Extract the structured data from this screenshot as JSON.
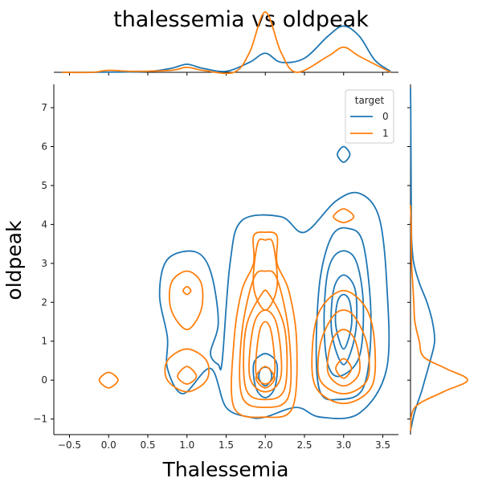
{
  "chart_data": {
    "type": "kde-jointplot",
    "title": "thalessemia vs oldpeak",
    "xlabel": "Thalessemia",
    "ylabel": "oldpeak",
    "xlim": [
      -0.7,
      3.7
    ],
    "ylim": [
      -1.4,
      7.6
    ],
    "xticks": [
      -0.5,
      0.0,
      0.5,
      1.0,
      1.5,
      2.0,
      2.5,
      3.0,
      3.5
    ],
    "xtick_labels": [
      "−0.5",
      "0.0",
      "0.5",
      "1.0",
      "1.5",
      "2.0",
      "2.5",
      "3.0",
      "3.5"
    ],
    "yticks": [
      -1,
      0,
      1,
      2,
      3,
      4,
      5,
      6,
      7
    ],
    "ytick_labels": [
      "−1",
      "0",
      "1",
      "2",
      "3",
      "4",
      "5",
      "6",
      "7"
    ],
    "legend": {
      "title": "target",
      "position": "top-right"
    },
    "series": [
      {
        "name": "0",
        "color": "#1f77b4",
        "marginal_x": [
          [
            -0.6,
            0.0
          ],
          [
            -0.3,
            0.0
          ],
          [
            0.0,
            0.001
          ],
          [
            0.5,
            0.004
          ],
          [
            0.8,
            0.02
          ],
          [
            1.0,
            0.04
          ],
          [
            1.2,
            0.02
          ],
          [
            1.5,
            0.005
          ],
          [
            1.8,
            0.05
          ],
          [
            2.0,
            0.095
          ],
          [
            2.2,
            0.05
          ],
          [
            2.5,
            0.07
          ],
          [
            2.8,
            0.18
          ],
          [
            3.0,
            0.23
          ],
          [
            3.2,
            0.18
          ],
          [
            3.4,
            0.06
          ],
          [
            3.6,
            0.005
          ]
        ],
        "marginal_y": [
          [
            -1.3,
            0.0
          ],
          [
            -0.8,
            0.02
          ],
          [
            -0.3,
            0.05
          ],
          [
            0.0,
            0.065
          ],
          [
            0.5,
            0.09
          ],
          [
            1.0,
            0.11
          ],
          [
            1.5,
            0.1
          ],
          [
            2.0,
            0.075
          ],
          [
            2.5,
            0.04
          ],
          [
            3.0,
            0.015
          ],
          [
            3.5,
            0.006
          ],
          [
            4.0,
            0.004
          ],
          [
            5.0,
            0.003
          ],
          [
            6.0,
            0.002
          ],
          [
            7.0,
            0.001
          ],
          [
            7.5,
            0.0
          ]
        ],
        "contours": [
          [
            [
              2.0,
              -0.95
            ],
            [
              2.4,
              -0.7
            ],
            [
              2.7,
              -0.95
            ],
            [
              3.2,
              -0.85
            ],
            [
              3.55,
              0.3
            ],
            [
              3.55,
              2.5
            ],
            [
              3.45,
              4.2
            ],
            [
              3.2,
              4.8
            ],
            [
              2.9,
              4.6
            ],
            [
              2.5,
              3.8
            ],
            [
              2.2,
              4.2
            ],
            [
              1.7,
              4.1
            ],
            [
              1.55,
              3.0
            ],
            [
              1.45,
              0.5
            ],
            [
              1.4,
              0.4
            ],
            [
              1.3,
              0.7
            ],
            [
              1.4,
              1.5
            ],
            [
              1.3,
              2.8
            ],
            [
              1.1,
              3.3
            ],
            [
              0.75,
              3.1
            ],
            [
              0.65,
              2.2
            ],
            [
              0.75,
              1.1
            ],
            [
              0.75,
              0.3
            ],
            [
              0.95,
              -0.35
            ],
            [
              1.3,
              0.3
            ],
            [
              1.5,
              -0.7
            ],
            [
              1.8,
              -0.95
            ]
          ],
          [
            [
              2.9,
              -0.5
            ],
            [
              3.25,
              -0.2
            ],
            [
              3.35,
              1.5
            ],
            [
              3.25,
              3.5
            ],
            [
              3.05,
              3.9
            ],
            [
              2.85,
              3.7
            ],
            [
              2.7,
              2.6
            ],
            [
              2.65,
              0.8
            ],
            [
              2.7,
              -0.3
            ]
          ],
          [
            [
              2.95,
              0.1
            ],
            [
              3.2,
              0.6
            ],
            [
              3.25,
              2.0
            ],
            [
              3.15,
              3.1
            ],
            [
              2.95,
              3.3
            ],
            [
              2.8,
              2.8
            ],
            [
              2.75,
              1.5
            ],
            [
              2.8,
              0.4
            ]
          ],
          [
            [
              3.0,
              0.4
            ],
            [
              3.15,
              1.2
            ],
            [
              3.15,
              2.3
            ],
            [
              3.0,
              2.7
            ],
            [
              2.87,
              2.3
            ],
            [
              2.85,
              1.2
            ]
          ],
          [
            [
              3.0,
              0.8
            ],
            [
              3.1,
              1.4
            ],
            [
              3.08,
              2.0
            ],
            [
              3.0,
              2.2
            ],
            [
              2.92,
              2.0
            ],
            [
              2.9,
              1.4
            ]
          ],
          [
            [
              2.0,
              -0.45
            ],
            [
              2.12,
              -0.2
            ],
            [
              2.15,
              0.4
            ],
            [
              2.05,
              0.65
            ],
            [
              1.95,
              0.65
            ],
            [
              1.85,
              0.4
            ],
            [
              1.88,
              -0.2
            ]
          ],
          [
            [
              2.0,
              -0.15
            ],
            [
              2.08,
              0.05
            ],
            [
              2.05,
              0.3
            ],
            [
              1.95,
              0.3
            ],
            [
              1.92,
              0.05
            ]
          ],
          [
            [
              3.0,
              5.6
            ],
            [
              3.08,
              5.8
            ],
            [
              3.0,
              6.0
            ],
            [
              2.92,
              5.8
            ]
          ]
        ]
      },
      {
        "name": "1",
        "color": "#ff7f0e",
        "marginal_x": [
          [
            -0.6,
            0.0
          ],
          [
            -0.2,
            0.0
          ],
          [
            0.0,
            0.01
          ],
          [
            0.3,
            0.005
          ],
          [
            0.8,
            0.01
          ],
          [
            1.0,
            0.025
          ],
          [
            1.2,
            0.01
          ],
          [
            1.6,
            0.0
          ],
          [
            1.8,
            0.1
          ],
          [
            2.0,
            0.3
          ],
          [
            2.2,
            0.1
          ],
          [
            2.4,
            0.0
          ],
          [
            2.8,
            0.08
          ],
          [
            3.0,
            0.125
          ],
          [
            3.2,
            0.08
          ],
          [
            3.6,
            0.0
          ]
        ],
        "marginal_y": [
          [
            -1.3,
            0.0
          ],
          [
            -0.7,
            0.02
          ],
          [
            -0.3,
            0.15
          ],
          [
            0.0,
            0.26
          ],
          [
            0.3,
            0.16
          ],
          [
            0.6,
            0.06
          ],
          [
            1.0,
            0.04
          ],
          [
            1.5,
            0.02
          ],
          [
            2.0,
            0.015
          ],
          [
            2.5,
            0.01
          ],
          [
            3.0,
            0.005
          ],
          [
            4.0,
            0.003
          ],
          [
            4.5,
            0.0
          ]
        ],
        "contours": [
          [
            [
              2.0,
              -0.95
            ],
            [
              2.35,
              -0.7
            ],
            [
              2.4,
              1.0
            ],
            [
              2.3,
              2.3
            ],
            [
              2.15,
              3.0
            ],
            [
              2.15,
              3.7
            ],
            [
              2.0,
              3.8
            ],
            [
              1.85,
              3.7
            ],
            [
              1.85,
              3.0
            ],
            [
              1.7,
              2.3
            ],
            [
              1.6,
              1.0
            ],
            [
              1.6,
              -0.7
            ]
          ],
          [
            [
              2.0,
              -0.7
            ],
            [
              2.3,
              -0.4
            ],
            [
              2.3,
              1.2
            ],
            [
              2.15,
              2.6
            ],
            [
              2.0,
              2.8
            ],
            [
              1.85,
              2.6
            ],
            [
              1.7,
              1.2
            ],
            [
              1.7,
              -0.4
            ]
          ],
          [
            [
              2.0,
              -0.5
            ],
            [
              2.25,
              -0.2
            ],
            [
              2.25,
              1.3
            ],
            [
              2.05,
              2.2
            ],
            [
              1.95,
              2.2
            ],
            [
              1.75,
              1.3
            ],
            [
              1.75,
              -0.2
            ]
          ],
          [
            [
              2.0,
              -0.3
            ],
            [
              2.2,
              0.1
            ],
            [
              2.15,
              1.4
            ],
            [
              2.0,
              1.8
            ],
            [
              1.85,
              1.4
            ],
            [
              1.8,
              0.1
            ]
          ],
          [
            [
              2.0,
              -0.1
            ],
            [
              2.12,
              0.2
            ],
            [
              2.08,
              1.2
            ],
            [
              2.0,
              1.5
            ],
            [
              1.92,
              1.2
            ],
            [
              1.88,
              0.2
            ]
          ],
          [
            [
              2.0,
              -0.2
            ],
            [
              2.12,
              0.05
            ],
            [
              2.0,
              0.35
            ],
            [
              1.88,
              0.05
            ]
          ],
          [
            [
              2.0,
              1.8
            ],
            [
              2.15,
              2.4
            ],
            [
              2.1,
              3.5
            ],
            [
              2.0,
              3.6
            ],
            [
              1.9,
              3.5
            ],
            [
              1.85,
              2.4
            ]
          ],
          [
            [
              3.0,
              -0.6
            ],
            [
              3.35,
              -0.2
            ],
            [
              3.4,
              0.8
            ],
            [
              3.3,
              1.8
            ],
            [
              3.0,
              2.3
            ],
            [
              2.7,
              1.8
            ],
            [
              2.6,
              0.8
            ],
            [
              2.65,
              -0.2
            ]
          ],
          [
            [
              3.0,
              -0.35
            ],
            [
              3.3,
              0.0
            ],
            [
              3.3,
              0.9
            ],
            [
              3.15,
              1.6
            ],
            [
              3.0,
              1.8
            ],
            [
              2.85,
              1.6
            ],
            [
              2.7,
              0.9
            ],
            [
              2.7,
              0.0
            ]
          ],
          [
            [
              3.0,
              -0.15
            ],
            [
              3.2,
              0.2
            ],
            [
              3.15,
              1.0
            ],
            [
              3.0,
              1.3
            ],
            [
              2.85,
              1.0
            ],
            [
              2.8,
              0.2
            ]
          ],
          [
            [
              3.0,
              0.05
            ],
            [
              3.1,
              0.3
            ],
            [
              3.0,
              0.55
            ],
            [
              2.9,
              0.3
            ]
          ],
          [
            [
              3.0,
              4.05
            ],
            [
              3.13,
              4.2
            ],
            [
              3.0,
              4.4
            ],
            [
              2.87,
              4.2
            ]
          ],
          [
            [
              1.0,
              -0.3
            ],
            [
              1.25,
              0.0
            ],
            [
              1.25,
              0.5
            ],
            [
              1.0,
              0.8
            ],
            [
              0.75,
              0.5
            ],
            [
              0.75,
              0.0
            ]
          ],
          [
            [
              1.0,
              -0.1
            ],
            [
              1.12,
              0.1
            ],
            [
              1.0,
              0.35
            ],
            [
              0.88,
              0.1
            ]
          ],
          [
            [
              1.0,
              1.3
            ],
            [
              1.18,
              1.8
            ],
            [
              1.18,
              2.5
            ],
            [
              1.0,
              2.8
            ],
            [
              0.8,
              2.5
            ],
            [
              0.8,
              1.8
            ]
          ],
          [
            [
              1.0,
              2.2
            ],
            [
              1.05,
              2.3
            ],
            [
              1.0,
              2.4
            ],
            [
              0.95,
              2.3
            ]
          ],
          [
            [
              0.0,
              -0.2
            ],
            [
              0.12,
              0.0
            ],
            [
              0.0,
              0.2
            ],
            [
              -0.12,
              0.0
            ]
          ]
        ]
      }
    ]
  }
}
